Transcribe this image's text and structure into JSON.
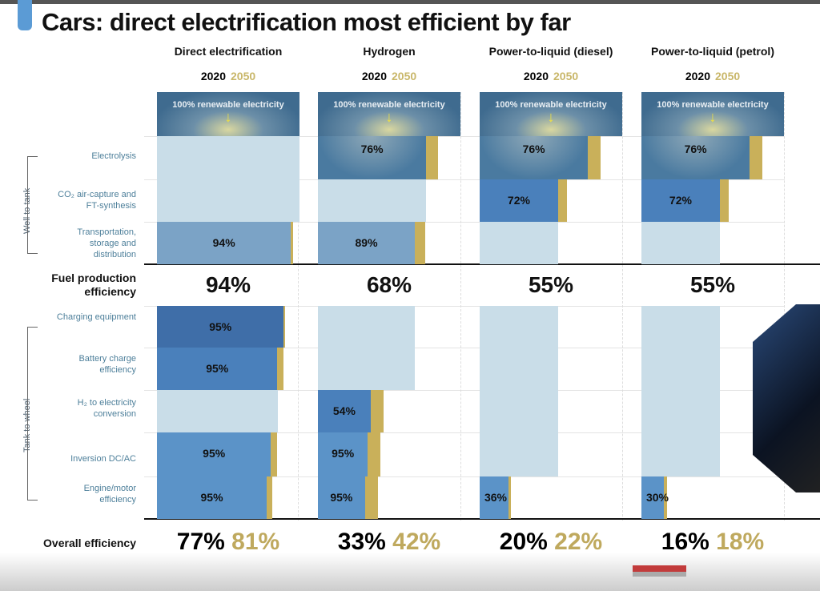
{
  "title": "Cars: direct electrification most efficient by far",
  "colors": {
    "header": "#3f6b8f",
    "light": "#c9dde8",
    "gold": "#c9b05a",
    "dark": "#3f6ea8",
    "mid": "#5b93c8",
    "pale": "#7ba3c6",
    "electro": "#4a7aa0"
  },
  "chart_data": {
    "type": "bar",
    "title": "Cars: direct electrification most efficient by far",
    "legend": [
      "2020",
      "2050"
    ],
    "side_labels": [
      "Well to tank",
      "Tank to wheel"
    ],
    "rows": [
      "Electrolysis",
      "CO₂ air-capture and FT-synthesis",
      "Transportation, storage and distribution",
      "Fuel production efficiency",
      "Charging equipment",
      "Battery charge efficiency",
      "H₂ to electricity conversion",
      "Inversion DC/AC",
      "Engine/motor efficiency",
      "Overall efficiency"
    ],
    "source_label": "100% renewable electricity",
    "columns": [
      {
        "name": "Direct electrification",
        "fuel": "94%",
        "overall_2020": "77%",
        "overall_2050": "81%",
        "steps": [
          {
            "row": 0,
            "kind": "light",
            "v": 1.0,
            "v50": 1.0,
            "label": ""
          },
          {
            "row": 1,
            "kind": "light",
            "v": 1.0,
            "v50": 1.0,
            "label": ""
          },
          {
            "row": 2,
            "kind": "pale",
            "v": 0.94,
            "v50": 0.955,
            "label": "94%"
          },
          {
            "row": 4,
            "kind": "dark",
            "v": 0.89,
            "v50": 0.9,
            "label": "95%"
          },
          {
            "row": 5,
            "kind": "dark2",
            "v": 0.845,
            "v50": 0.885,
            "label": "95%"
          },
          {
            "row": 6,
            "kind": "light",
            "v": 0.85,
            "v50": 0.85,
            "label": ""
          },
          {
            "row": 7,
            "kind": "mid",
            "v": 0.8,
            "v50": 0.845,
            "label": "95%"
          },
          {
            "row": 8,
            "kind": "mid",
            "v": 0.77,
            "v50": 0.81,
            "label": "95%"
          }
        ]
      },
      {
        "name": "Hydrogen",
        "fuel": "68%",
        "overall_2020": "33%",
        "overall_2050": "42%",
        "steps": [
          {
            "row": 0,
            "kind": "electro",
            "v": 0.76,
            "v50": 0.84,
            "label": "76%"
          },
          {
            "row": 1,
            "kind": "light",
            "v": 0.76,
            "v50": 0.76,
            "label": ""
          },
          {
            "row": 2,
            "kind": "pale",
            "v": 0.68,
            "v50": 0.75,
            "label": "89%"
          },
          {
            "row": 4,
            "kind": "light",
            "v": 0.68,
            "v50": 0.68,
            "label": ""
          },
          {
            "row": 5,
            "kind": "light",
            "v": 0.68,
            "v50": 0.68,
            "label": ""
          },
          {
            "row": 6,
            "kind": "dark2",
            "v": 0.37,
            "v50": 0.46,
            "label": "54%"
          },
          {
            "row": 7,
            "kind": "mid",
            "v": 0.35,
            "v50": 0.44,
            "label": "95%"
          },
          {
            "row": 8,
            "kind": "mid",
            "v": 0.33,
            "v50": 0.42,
            "label": "95%"
          }
        ]
      },
      {
        "name": "Power-to-liquid (diesel)",
        "fuel": "55%",
        "overall_2020": "20%",
        "overall_2050": "22%",
        "steps": [
          {
            "row": 0,
            "kind": "electro",
            "v": 0.76,
            "v50": 0.85,
            "label": "76%"
          },
          {
            "row": 1,
            "kind": "dark2",
            "v": 0.55,
            "v50": 0.61,
            "label": "72%"
          },
          {
            "row": 2,
            "kind": "light",
            "v": 0.55,
            "v50": 0.55,
            "label": ""
          },
          {
            "row": 4,
            "kind": "light",
            "v": 0.55,
            "v50": 0.55,
            "label": ""
          },
          {
            "row": 5,
            "kind": "light",
            "v": 0.55,
            "v50": 0.55,
            "label": ""
          },
          {
            "row": 6,
            "kind": "light",
            "v": 0.55,
            "v50": 0.55,
            "label": ""
          },
          {
            "row": 7,
            "kind": "light",
            "v": 0.55,
            "v50": 0.55,
            "label": ""
          },
          {
            "row": 8,
            "kind": "mid",
            "v": 0.2,
            "v50": 0.22,
            "label": "36%"
          }
        ]
      },
      {
        "name": "Power-to-liquid (petrol)",
        "fuel": "55%",
        "overall_2020": "16%",
        "overall_2050": "18%",
        "steps": [
          {
            "row": 0,
            "kind": "electro",
            "v": 0.76,
            "v50": 0.85,
            "label": "76%"
          },
          {
            "row": 1,
            "kind": "dark2",
            "v": 0.55,
            "v50": 0.61,
            "label": "72%"
          },
          {
            "row": 2,
            "kind": "light",
            "v": 0.55,
            "v50": 0.55,
            "label": ""
          },
          {
            "row": 4,
            "kind": "light",
            "v": 0.55,
            "v50": 0.55,
            "label": ""
          },
          {
            "row": 5,
            "kind": "light",
            "v": 0.55,
            "v50": 0.55,
            "label": ""
          },
          {
            "row": 6,
            "kind": "light",
            "v": 0.55,
            "v50": 0.55,
            "label": ""
          },
          {
            "row": 7,
            "kind": "light",
            "v": 0.55,
            "v50": 0.55,
            "label": ""
          },
          {
            "row": 8,
            "kind": "mid",
            "v": 0.16,
            "v50": 0.18,
            "label": "30%"
          }
        ]
      }
    ]
  }
}
